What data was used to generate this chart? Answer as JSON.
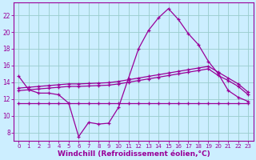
{
  "background_color": "#cceeff",
  "grid_color": "#99cccc",
  "line_color": "#990099",
  "xlabel": "Windchill (Refroidissement éolien,°C)",
  "xlabel_fontsize": 6.5,
  "tick_fontsize": 5.5,
  "ylim": [
    7.0,
    23.5
  ],
  "xlim": [
    -0.5,
    23.5
  ],
  "yticks": [
    8,
    10,
    12,
    14,
    16,
    18,
    20,
    22
  ],
  "xticks": [
    0,
    1,
    2,
    3,
    4,
    5,
    6,
    7,
    8,
    9,
    10,
    11,
    12,
    13,
    14,
    15,
    16,
    17,
    18,
    19,
    20,
    21,
    22,
    23
  ],
  "line1_y": [
    14.7,
    13.1,
    12.7,
    12.7,
    12.5,
    11.5,
    7.5,
    9.2,
    9.0,
    9.1,
    11.0,
    14.5,
    18.0,
    20.2,
    21.7,
    22.8,
    21.5,
    19.8,
    18.5,
    16.5,
    15.0,
    13.0,
    12.2,
    11.7
  ],
  "line2_y": [
    13.0,
    13.1,
    13.2,
    13.3,
    13.4,
    13.5,
    13.5,
    13.55,
    13.6,
    13.65,
    13.8,
    14.0,
    14.2,
    14.4,
    14.6,
    14.8,
    15.0,
    15.2,
    15.4,
    15.6,
    14.8,
    14.2,
    13.5,
    12.5
  ],
  "line3_y": [
    13.3,
    13.4,
    13.5,
    13.6,
    13.7,
    13.8,
    13.8,
    13.85,
    13.9,
    13.95,
    14.1,
    14.3,
    14.5,
    14.7,
    14.9,
    15.1,
    15.3,
    15.5,
    15.7,
    15.9,
    15.2,
    14.5,
    13.8,
    12.8
  ],
  "line4_y": [
    11.5,
    11.5,
    11.5,
    11.5,
    11.5,
    11.5,
    11.5,
    11.5,
    11.5,
    11.5,
    11.5,
    11.5,
    11.5,
    11.5,
    11.5,
    11.5,
    11.5,
    11.5,
    11.5,
    11.5,
    11.5,
    11.5,
    11.5,
    11.5
  ]
}
